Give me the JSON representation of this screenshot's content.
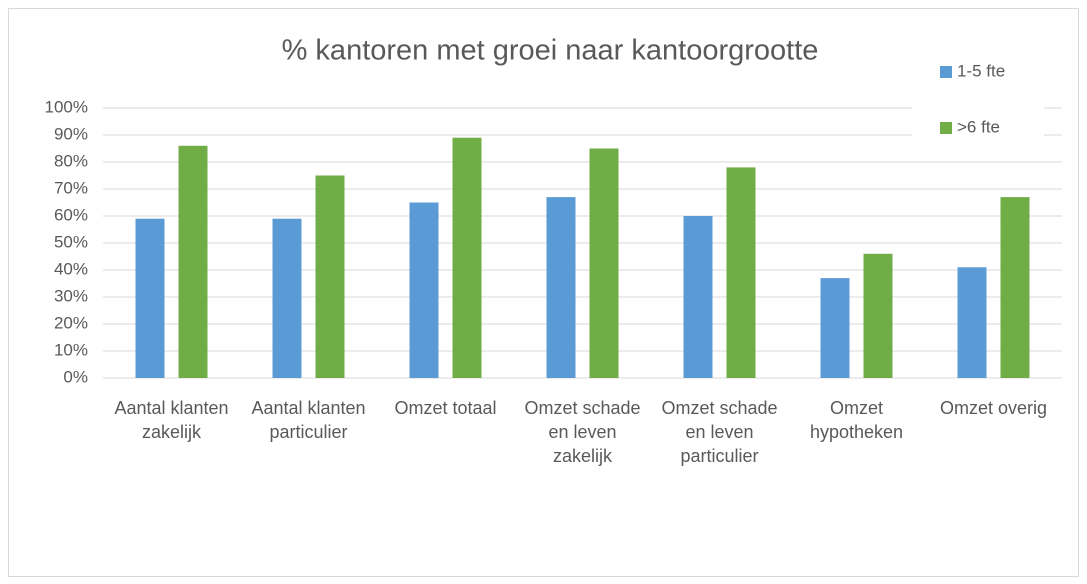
{
  "chart_data": {
    "type": "bar",
    "title": "% kantoren met groei naar kantoorgrootte",
    "categories": [
      "Aantal klanten zakelijk",
      "Aantal klanten particulier",
      "Omzet totaal",
      "Omzet schade en leven zakelijk",
      "Omzet schade en leven particulier",
      "Omzet hypotheken",
      "Omzet overig"
    ],
    "series": [
      {
        "name": "1-5 fte",
        "color": "#5b9bd5",
        "values": [
          59,
          59,
          65,
          67,
          60,
          37,
          41
        ]
      },
      {
        "name": ">6 fte",
        "color": "#70ad47",
        "values": [
          86,
          75,
          89,
          85,
          78,
          46,
          67
        ]
      }
    ],
    "ylim": [
      0,
      100
    ],
    "yticks": [
      {
        "value": 0,
        "label": "0%"
      },
      {
        "value": 10,
        "label": "10%"
      },
      {
        "value": 20,
        "label": "20%"
      },
      {
        "value": 30,
        "label": "30%"
      },
      {
        "value": 40,
        "label": "40%"
      },
      {
        "value": 50,
        "label": "50%"
      },
      {
        "value": 60,
        "label": "60%"
      },
      {
        "value": 70,
        "label": "70%"
      },
      {
        "value": 80,
        "label": "80%"
      },
      {
        "value": 90,
        "label": "90%"
      },
      {
        "value": 100,
        "label": "100%"
      }
    ],
    "grid": true,
    "legend": "top-right"
  }
}
